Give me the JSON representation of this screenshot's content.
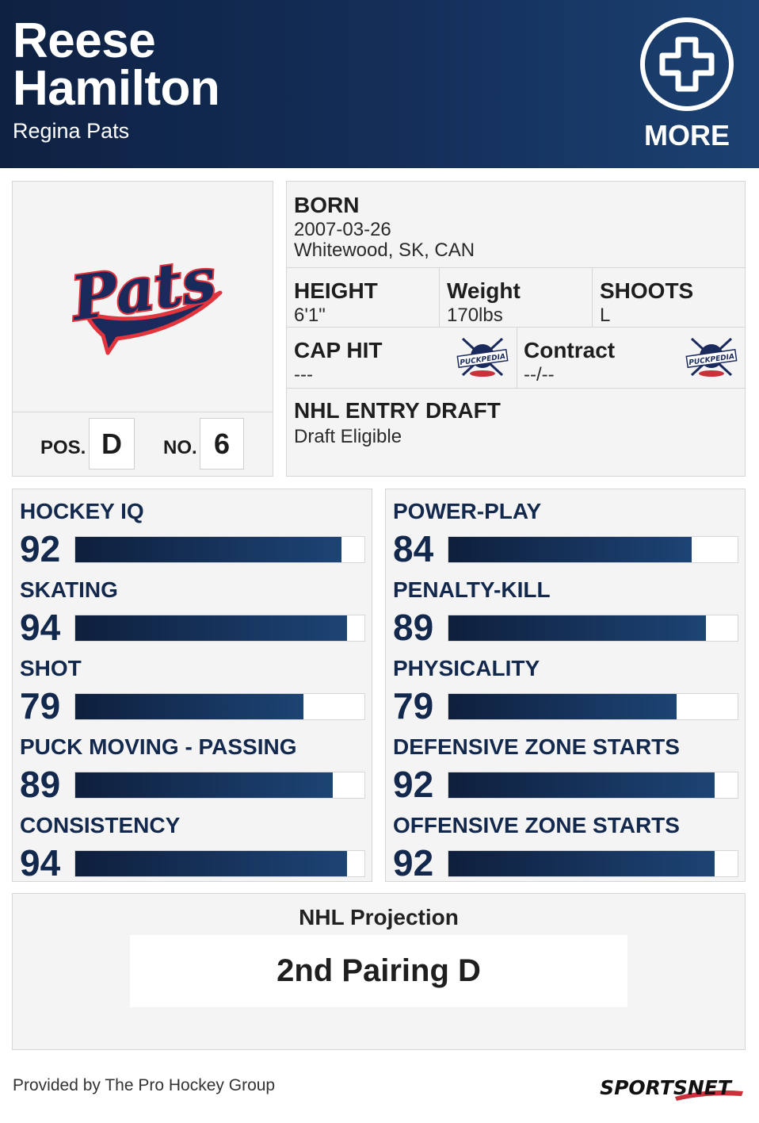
{
  "header": {
    "first_name": "Reese",
    "last_name": "Hamilton",
    "team": "Regina Pats",
    "more_label": "MORE",
    "more_icon": "plus-circle-icon"
  },
  "profile": {
    "logo_text": "Pats",
    "pos_label": "POS.",
    "pos_value": "D",
    "no_label": "NO.",
    "no_value": "6"
  },
  "info": {
    "born_label": "BORN",
    "born_date": "2007-03-26",
    "born_place": "Whitewood, SK, CAN",
    "height_label": "HEIGHT",
    "height_value": "6'1\"",
    "weight_label": "Weight",
    "weight_value": "170lbs",
    "shoots_label": "SHOOTS",
    "shoots_value": "L",
    "cap_label": "CAP HIT",
    "cap_value": "---",
    "contract_label": "Contract",
    "contract_value": "--/--",
    "puckpedia_text": "PUCKPEDIA",
    "draft_label": "NHL ENTRY DRAFT",
    "draft_value": "Draft Eligible"
  },
  "stats_left": [
    {
      "label": "HOCKEY IQ",
      "value": "92",
      "percent": 92
    },
    {
      "label": "SKATING",
      "value": "94",
      "percent": 94
    },
    {
      "label": "SHOT",
      "value": "79",
      "percent": 79
    },
    {
      "label": "PUCK MOVING - PASSING",
      "value": "89",
      "percent": 89
    },
    {
      "label": "CONSISTENCY",
      "value": "94",
      "percent": 94
    }
  ],
  "stats_right": [
    {
      "label": "POWER-PLAY",
      "value": "84",
      "percent": 84
    },
    {
      "label": "PENALTY-KILL",
      "value": "89",
      "percent": 89
    },
    {
      "label": "PHYSICALITY",
      "value": "79",
      "percent": 79
    },
    {
      "label": "DEFENSIVE ZONE STARTS",
      "value": "92",
      "percent": 92
    },
    {
      "label": "OFFENSIVE ZONE STARTS",
      "value": "92",
      "percent": 92
    }
  ],
  "projection": {
    "title": "NHL Projection",
    "value": "2nd Pairing D"
  },
  "footer": {
    "provided": "Provided by The Pro Hockey Group",
    "brand": "SPORTSNET"
  },
  "colors": {
    "header_dark": "#0e2142",
    "header_light": "#1b4172",
    "stat_text": "#12284c",
    "pats_red": "#e1343c",
    "pats_navy": "#1b2a5c"
  }
}
